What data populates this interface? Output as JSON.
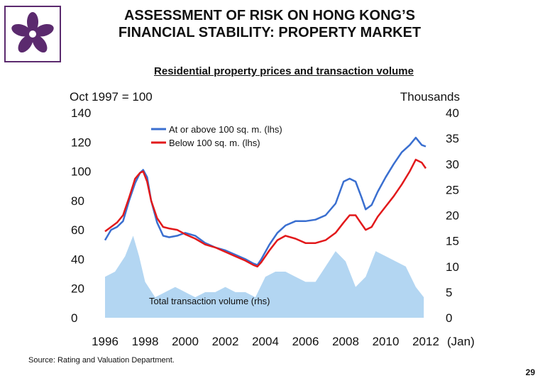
{
  "slide": {
    "title_line1": "ASSESSMENT OF RISK ON HONG KONG’S",
    "title_line2": "FINANCIAL STABILITY: PROPERTY MARKET",
    "source": "Source: Rating and Valuation Department.",
    "page_number": "29"
  },
  "chart_data": {
    "type": "line",
    "title": "Residential property prices and transaction volume",
    "y_left_label": "Oct 1997 = 100",
    "y_right_label": "Thousands",
    "x_suffix": "(Jan)",
    "xlim": [
      1996,
      2012
    ],
    "ylim_left": [
      0,
      140
    ],
    "ylim_right": [
      0,
      40
    ],
    "x_ticks": [
      "1996",
      "1998",
      "2000",
      "2002",
      "2004",
      "2006",
      "2008",
      "2010",
      "2012"
    ],
    "y_left_ticks": [
      "0",
      "20",
      "40",
      "60",
      "80",
      "100",
      "120",
      "140"
    ],
    "y_right_ticks": [
      "0",
      "5",
      "10",
      "15",
      "20",
      "25",
      "30",
      "35",
      "40"
    ],
    "colors": {
      "large": "#3a6fd0",
      "small": "#e2191b",
      "volume": "#b3d6f2"
    },
    "series": [
      {
        "name": "At or above 100 sq. m. (lhs)",
        "axis": "left",
        "points": [
          [
            1996.0,
            53
          ],
          [
            1996.3,
            60
          ],
          [
            1996.6,
            62
          ],
          [
            1996.9,
            66
          ],
          [
            1997.2,
            80
          ],
          [
            1997.5,
            92
          ],
          [
            1997.75,
            99
          ],
          [
            1997.9,
            101
          ],
          [
            1998.1,
            96
          ],
          [
            1998.3,
            80
          ],
          [
            1998.6,
            65
          ],
          [
            1998.9,
            56
          ],
          [
            1999.2,
            55
          ],
          [
            1999.6,
            56
          ],
          [
            2000.0,
            58
          ],
          [
            2000.5,
            56
          ],
          [
            2001.0,
            51
          ],
          [
            2001.5,
            48
          ],
          [
            2002.0,
            46
          ],
          [
            2002.5,
            43
          ],
          [
            2003.0,
            40
          ],
          [
            2003.4,
            37
          ],
          [
            2003.6,
            36
          ],
          [
            2003.8,
            40
          ],
          [
            2004.2,
            50
          ],
          [
            2004.6,
            58
          ],
          [
            2005.0,
            63
          ],
          [
            2005.5,
            66
          ],
          [
            2006.0,
            66
          ],
          [
            2006.5,
            67
          ],
          [
            2007.0,
            70
          ],
          [
            2007.5,
            78
          ],
          [
            2007.9,
            93
          ],
          [
            2008.2,
            95
          ],
          [
            2008.5,
            93
          ],
          [
            2008.8,
            82
          ],
          [
            2009.0,
            74
          ],
          [
            2009.3,
            77
          ],
          [
            2009.6,
            86
          ],
          [
            2010.0,
            96
          ],
          [
            2010.4,
            105
          ],
          [
            2010.8,
            113
          ],
          [
            2011.2,
            118
          ],
          [
            2011.5,
            123
          ],
          [
            2011.8,
            118
          ],
          [
            2012.0,
            117
          ]
        ]
      },
      {
        "name": "Below 100 sq. m. (lhs)",
        "axis": "left",
        "points": [
          [
            1996.0,
            59
          ],
          [
            1996.3,
            62
          ],
          [
            1996.6,
            65
          ],
          [
            1996.9,
            70
          ],
          [
            1997.2,
            82
          ],
          [
            1997.5,
            95
          ],
          [
            1997.75,
            99
          ],
          [
            1997.9,
            100
          ],
          [
            1998.1,
            93
          ],
          [
            1998.3,
            80
          ],
          [
            1998.6,
            68
          ],
          [
            1998.9,
            62
          ],
          [
            1999.2,
            61
          ],
          [
            1999.6,
            60
          ],
          [
            2000.0,
            57
          ],
          [
            2000.5,
            54
          ],
          [
            2001.0,
            50
          ],
          [
            2001.5,
            48
          ],
          [
            2002.0,
            45
          ],
          [
            2002.5,
            42
          ],
          [
            2003.0,
            39
          ],
          [
            2003.4,
            36
          ],
          [
            2003.6,
            35
          ],
          [
            2003.8,
            38
          ],
          [
            2004.2,
            46
          ],
          [
            2004.6,
            53
          ],
          [
            2005.0,
            56
          ],
          [
            2005.5,
            54
          ],
          [
            2006.0,
            51
          ],
          [
            2006.5,
            51
          ],
          [
            2007.0,
            53
          ],
          [
            2007.5,
            58
          ],
          [
            2007.9,
            65
          ],
          [
            2008.2,
            70
          ],
          [
            2008.5,
            70
          ],
          [
            2008.8,
            64
          ],
          [
            2009.0,
            60
          ],
          [
            2009.3,
            62
          ],
          [
            2009.6,
            69
          ],
          [
            2010.0,
            76
          ],
          [
            2010.4,
            83
          ],
          [
            2010.8,
            91
          ],
          [
            2011.2,
            100
          ],
          [
            2011.5,
            108
          ],
          [
            2011.8,
            106
          ],
          [
            2012.0,
            102
          ]
        ]
      }
    ],
    "volume": {
      "name": "Total transaction volume (rhs)",
      "axis": "right",
      "points": [
        [
          1996.0,
          8
        ],
        [
          1996.5,
          9
        ],
        [
          1997.0,
          12
        ],
        [
          1997.4,
          16
        ],
        [
          1997.7,
          12
        ],
        [
          1998.0,
          7
        ],
        [
          1998.5,
          4
        ],
        [
          1999.0,
          5
        ],
        [
          1999.5,
          6
        ],
        [
          2000.0,
          5
        ],
        [
          2000.5,
          4
        ],
        [
          2001.0,
          5
        ],
        [
          2001.5,
          5
        ],
        [
          2002.0,
          6
        ],
        [
          2002.5,
          5
        ],
        [
          2003.0,
          5
        ],
        [
          2003.5,
          4
        ],
        [
          2004.0,
          8
        ],
        [
          2004.5,
          9
        ],
        [
          2005.0,
          9
        ],
        [
          2005.5,
          8
        ],
        [
          2006.0,
          7
        ],
        [
          2006.5,
          7
        ],
        [
          2007.0,
          10
        ],
        [
          2007.5,
          13
        ],
        [
          2008.0,
          11
        ],
        [
          2008.5,
          6
        ],
        [
          2009.0,
          8
        ],
        [
          2009.5,
          13
        ],
        [
          2010.0,
          12
        ],
        [
          2010.5,
          11
        ],
        [
          2011.0,
          10
        ],
        [
          2011.5,
          6
        ],
        [
          2011.9,
          4
        ]
      ]
    }
  }
}
